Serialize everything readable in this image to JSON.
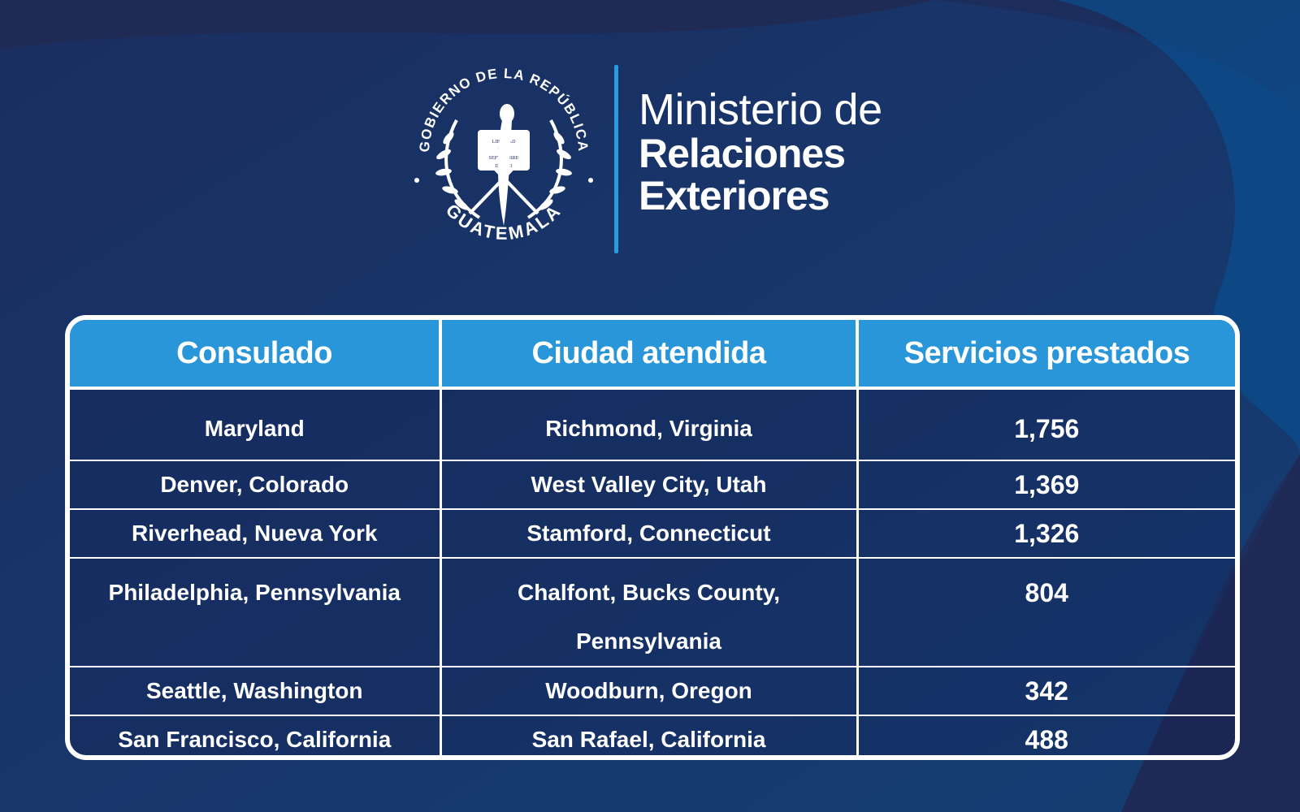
{
  "colors": {
    "background": "#1f2a55",
    "background_right": "#0a4f8f",
    "header_row": "#2996d9",
    "divider": "#2b9be0",
    "text": "#ffffff"
  },
  "seal": {
    "arc_top": "GOBIERNO DE LA REPÚBLICA",
    "arc_bottom": "GUATEMALA",
    "scroll_text": "LIBERTAD 15 DE SEPTIEMBRE DE 1821"
  },
  "ministry": {
    "line1": "Ministerio de",
    "line2": "Relaciones",
    "line3": "Exteriores"
  },
  "table": {
    "headers": [
      "Consulado",
      "Ciudad atendida",
      "Servicios prestados"
    ],
    "rows": [
      {
        "consulado": "Maryland",
        "ciudad": "Richmond, Virginia",
        "servicios": "1,756"
      },
      {
        "consulado": "Denver, Colorado",
        "ciudad": "West Valley City, Utah",
        "servicios": "1,369"
      },
      {
        "consulado": "Riverhead, Nueva York",
        "ciudad": "Stamford, Connecticut",
        "servicios": "1,326"
      },
      {
        "consulado": "Philadelphia, Pennsylvania",
        "ciudad": "Chalfont, Bucks County, Pennsylvania",
        "servicios": "804"
      },
      {
        "consulado": "Seattle, Washington",
        "ciudad": "Woodburn, Oregon",
        "servicios": "342"
      },
      {
        "consulado": "San Francisco, California",
        "ciudad": "San Rafael, California",
        "servicios": "488"
      }
    ]
  }
}
